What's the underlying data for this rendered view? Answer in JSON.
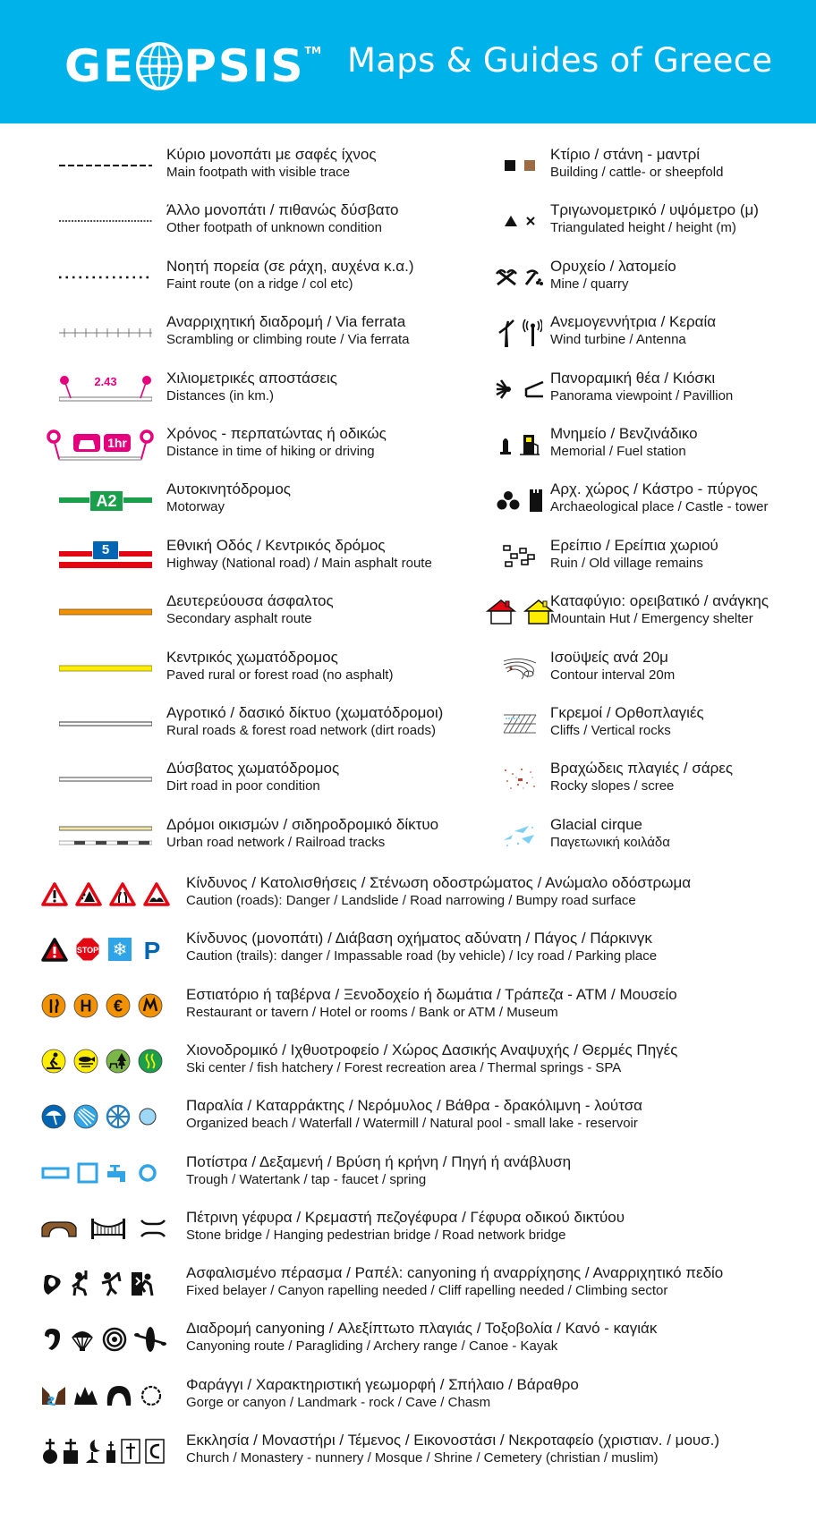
{
  "header": {
    "logo_text": "GE PSIS",
    "logo_tm": "TM",
    "tagline": "Maps & Guides of Greece",
    "background": "#00b2ea"
  },
  "left_items": [
    {
      "symbol": "dashed-line",
      "gr": "Κύριο μονοπάτι με σαφές ίχνος",
      "en": "Main footpath with visible trace"
    },
    {
      "symbol": "fine-dotted-line",
      "gr": "Άλλο μονοπάτι / πιθανώς δύσβατο",
      "en": "Other footpath of unknown condition"
    },
    {
      "symbol": "dotted-line",
      "gr": "Νοητή πορεία (σε ράχη, αυχένα κ.α.)",
      "en": "Faint route (on a ridge / col etc)"
    },
    {
      "symbol": "via-ferrata-line",
      "gr": "Αναρριχητική διαδρομή / Via ferrata",
      "en": "Scrambling or climbing route / Via ferrata"
    },
    {
      "symbol": "distance-marker",
      "label": "2.43",
      "gr": "Χιλιομετρικές αποστάσεις",
      "en": "Distances (in km.)"
    },
    {
      "symbol": "time-marker",
      "label": "1hr",
      "gr": "Χρόνος - περπατώντας ή οδικώς",
      "en": "Distance in time of hiking or driving"
    },
    {
      "symbol": "motorway",
      "label": "A2",
      "gr": "Αυτοκινητόδρομος",
      "en": "Motorway"
    },
    {
      "symbol": "highway",
      "label": "5",
      "gr": "Εθνική Οδός / Κεντρικός δρόμος",
      "en": "Highway (National road) / Main asphalt route"
    },
    {
      "symbol": "secondary-road",
      "gr": "Δευτερεύουσα άσφαλτος",
      "en": "Secondary asphalt route"
    },
    {
      "symbol": "paved-road",
      "gr": "Κεντρικός χωματόδρομος",
      "en": "Paved rural or forest road (no asphalt)"
    },
    {
      "symbol": "rural-road",
      "gr": "Αγροτικό / δασικό δίκτυο (χωματόδρομοι)",
      "en": "Rural roads & forest road network (dirt roads)"
    },
    {
      "symbol": "dirt-road",
      "gr": "Δύσβατος χωματόδρομος",
      "en": "Dirt road in poor condition"
    },
    {
      "symbol": "urban-rail",
      "gr": "Δρόμοι οικισμών / σιδηροδρομικό δίκτυο",
      "en": "Urban road network / Railroad tracks"
    }
  ],
  "right_items": [
    {
      "icons": [
        "building-icon",
        "sheepfold-icon"
      ],
      "gr": "Κτίριο / στάνη - μαντρί",
      "en": "Building / cattle- or sheepfold"
    },
    {
      "icons": [
        "triangulated-height-icon",
        "height-cross-icon"
      ],
      "gr": "Τριγωνομετρικό / υψόμετρο (μ)",
      "en": "Triangulated height / height (m)"
    },
    {
      "icons": [
        "mine-icon",
        "quarry-icon"
      ],
      "gr": "Ορυχείο / λατομείο",
      "en": "Mine / quarry"
    },
    {
      "icons": [
        "wind-turbine-icon",
        "antenna-icon"
      ],
      "gr": "Ανεμογεννήτρια / Κεραία",
      "en": "Wind turbine / Antenna"
    },
    {
      "icons": [
        "viewpoint-icon",
        "pavillion-icon"
      ],
      "gr": "Πανοραμική θέα / Κιόσκι",
      "en": "Panorama viewpoint / Pavillion"
    },
    {
      "icons": [
        "memorial-icon",
        "fuel-station-icon"
      ],
      "gr": "Μνημείο / Βενζινάδικο",
      "en": "Memorial / Fuel station"
    },
    {
      "icons": [
        "archaeological-icon",
        "castle-tower-icon"
      ],
      "gr": "Αρχ. χώρος / Κάστρο - πύργος",
      "en": "Archaeological place / Castle - tower"
    },
    {
      "icons": [
        "ruin-icon"
      ],
      "gr": "Ερείπιο / Ερείπια χωριού",
      "en": "Ruin / Old village remains"
    },
    {
      "icons": [
        "mountain-hut-icon",
        "emergency-shelter-icon"
      ],
      "gr": "Καταφύγιο: ορειβατικό / ανάγκης",
      "en": "Mountain Hut / Emergency shelter"
    },
    {
      "icons": [
        "contour-icon"
      ],
      "gr": "Ισοϋψείς ανά 20μ",
      "en": "Contour interval 20m"
    },
    {
      "icons": [
        "cliffs-icon"
      ],
      "gr": "Γκρεμοί / Ορθοπλαγιές",
      "en": "Cliffs / Vertical rocks"
    },
    {
      "icons": [
        "scree-icon"
      ],
      "gr": "Βραχώδεις πλαγιές / σάρες",
      "en": "Rocky slopes / scree"
    },
    {
      "icons": [
        "glacial-cirque-icon"
      ],
      "gr": "Glacial cirque",
      "en": "Παγετωνική κοιλάδα"
    }
  ],
  "bottom_items": [
    {
      "icons": [
        "danger-road-icon",
        "landslide-icon",
        "road-narrowing-icon",
        "bumpy-road-icon"
      ],
      "gr": "Κίνδυνος / Κατολισθήσεις / Στένωση οδοστρώματος / Ανώμαλο οδόστρωμα",
      "en": "Caution (roads): Danger / Landslide / Road narrowing / Bumpy road surface"
    },
    {
      "icons": [
        "danger-trail-icon",
        "stop-icon",
        "ice-icon",
        "parking-icon"
      ],
      "gr": "Κίνδυνος (μονοπάτι) / Διάβαση οχήματος αδύνατη / Πάγος / Πάρκινγκ",
      "en": "Caution (trails): danger / Impassable road (by vehicle) / Icy road / Parking place"
    },
    {
      "icons": [
        "restaurant-icon",
        "hotel-icon",
        "bank-icon",
        "museum-icon"
      ],
      "gr": "Εστιατόριο ή ταβέρνα / Ξενοδοχείο ή δωμάτια / Τράπεζα - ΑΤΜ / Μουσείο",
      "en": "Restaurant or tavern / Hotel  or rooms / Bank or ATM / Museum"
    },
    {
      "icons": [
        "ski-icon",
        "fish-hatchery-icon",
        "forest-recreation-icon",
        "thermal-springs-icon"
      ],
      "gr": "Χιονοδρομικό / Ιχθυοτροφείο / Χώρος Δασικής Αναψυχής / Θερμές Πηγές",
      "en": "Ski center / fish hatchery / Forest recreation area / Thermal springs - SPA"
    },
    {
      "icons": [
        "beach-icon",
        "waterfall-icon",
        "watermill-icon",
        "pool-icon"
      ],
      "gr": "Παραλία / Καταρράκτης / Νερόμυλος / Βάθρα - δρακόλιμνη - λούτσα",
      "en": "Organized beach / Waterfall / Watermill / Natural pool - small lake - reservoir"
    },
    {
      "icons": [
        "trough-icon",
        "watertank-icon",
        "tap-icon",
        "spring-icon"
      ],
      "gr": "Ποτίστρα / Δεξαμενή / Βρύση ή κρήνη / Πηγή ή ανάβλυση",
      "en": "Trough / Watertank / tap - faucet / spring"
    },
    {
      "icons": [
        "stone-bridge-icon",
        "hanging-bridge-icon",
        "road-bridge-icon"
      ],
      "gr": "Πέτρινη γέφυρα / Κρεμαστή πεζογέφυρα / Γέφυρα οδικού δικτύου",
      "en": "Stone bridge / Hanging pedestrian bridge / Road network bridge"
    },
    {
      "icons": [
        "belayer-icon",
        "canyon-rappel-icon",
        "cliff-rappel-icon",
        "climbing-sector-icon"
      ],
      "gr": "Ασφαλισμένο πέρασμα / Ραπέλ: canyoning ή αναρρίχησης / Αναρριχητικό πεδίο",
      "en": "Fixed belayer / Canyon rapelling needed / Cliff rapelling needed / Climbing sector"
    },
    {
      "icons": [
        "canyoning-icon",
        "paragliding-icon",
        "archery-icon",
        "kayak-icon"
      ],
      "gr": "Διαδρομή canyoning / Αλεξίπτωτο πλαγιάς / Τοξοβολία / Κανό - καγιάκ",
      "en": "Canyoning route / Paragliding / Archery range / Canoe - Kayak"
    },
    {
      "icons": [
        "gorge-icon",
        "landmark-rock-icon",
        "cave-icon",
        "chasm-icon"
      ],
      "gr": "Φαράγγι / Χαρακτηριστική γεωμορφή / Σπήλαιο / Βάραθρο",
      "en": "Gorge or canyon / Landmark - rock / Cave / Chasm"
    },
    {
      "icons": [
        "church-icon",
        "monastery-icon",
        "mosque-icon",
        "shrine-icon",
        "christian-cemetery-icon",
        "muslim-cemetery-icon"
      ],
      "gr": "Εκκλησία / Μοναστήρι / Τέμενος / Εικονοστάσι / Νεκροταφείο (χριστιαν. / μουσ.)",
      "en": "Church / Monastery - nunnery / Mosque / Shrine / Cemetery (christian / muslim)"
    }
  ],
  "colors": {
    "pink": "#e5007e",
    "green": "#1aa04a",
    "red": "#e30613",
    "blue": "#0066b3",
    "orange": "#f39200",
    "yellow": "#ffed00",
    "brown": "#8b5a2b",
    "light_blue": "#2fa4e7"
  }
}
